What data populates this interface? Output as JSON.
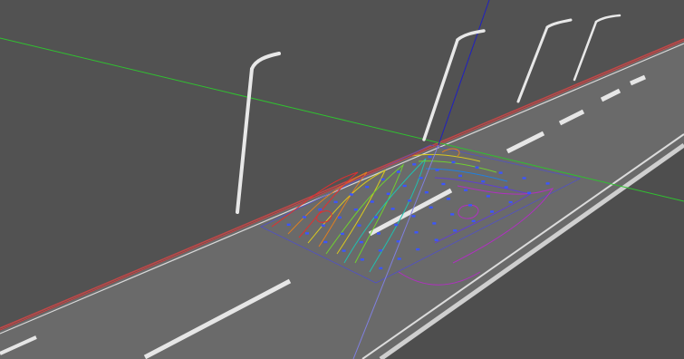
{
  "viewport": {
    "background_color": "#4c4c4c",
    "ground_color": "#575757",
    "road_color": "#6e6e6e",
    "lane_marking_color": "#e8e8e8",
    "lamp_color": "#e6e6e6"
  },
  "axes": {
    "x_color": "#d04040",
    "y_color": "#30c030",
    "z_color": "#2020c0"
  },
  "calculation_grid": {
    "marker_color": "#3b55ff",
    "boundary_color": "#3b3bd0",
    "contour_colors": [
      "#e03030",
      "#e08020",
      "#d8c820",
      "#70d030",
      "#20c0b0",
      "#2080e0",
      "#6040d0",
      "#b030c0"
    ]
  },
  "street_lights": [
    "light-1",
    "light-2",
    "light-3",
    "light-4"
  ]
}
